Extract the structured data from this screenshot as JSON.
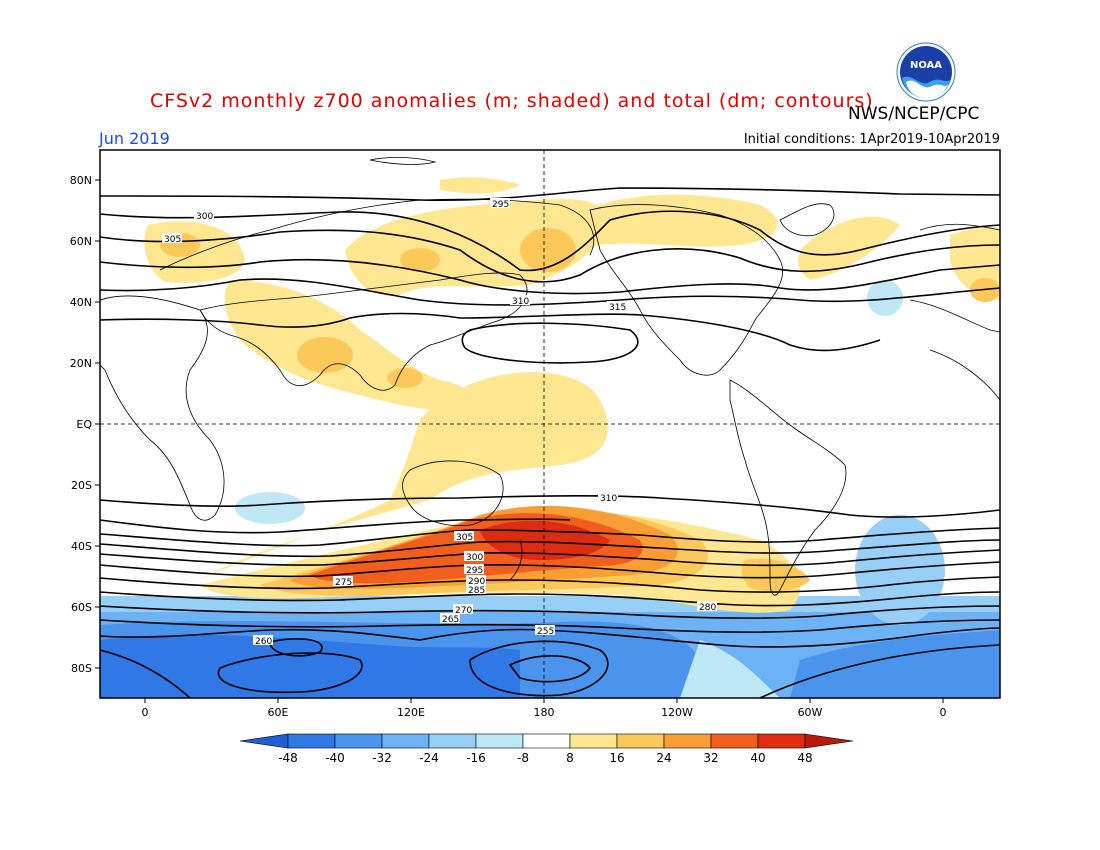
{
  "header": {
    "title": "CFSv2 monthly z700 anomalies (m; shaded) and total (dm; contours)",
    "agency": "NWS/NCEP/CPC",
    "period": "Jun 2019",
    "initial_conditions": "Initial conditions: 1Apr2019-10Apr2019",
    "logo_text": "NOAA"
  },
  "map": {
    "lat_ticks": [
      "80N",
      "60N",
      "40N",
      "20N",
      "EQ",
      "20S",
      "40S",
      "60S",
      "80S"
    ],
    "lon_ticks": [
      "0",
      "60E",
      "120E",
      "180",
      "120W",
      "60W",
      "0"
    ],
    "contour_labels": [
      "295",
      "300",
      "305",
      "310",
      "315",
      "310",
      "305",
      "300",
      "295",
      "290",
      "285",
      "280",
      "275",
      "270",
      "265",
      "260",
      "255"
    ]
  },
  "colorbar": {
    "ticks": [
      "-48",
      "-40",
      "-32",
      "-24",
      "-16",
      "-8",
      "8",
      "16",
      "24",
      "32",
      "40",
      "48"
    ],
    "colors": [
      "#1e5fd6",
      "#2f78e6",
      "#4a94ee",
      "#6cb2f4",
      "#98cff6",
      "#bfe8f6",
      "#ffffff",
      "#ffe690",
      "#fcc85a",
      "#f99d34",
      "#f25e1e",
      "#dd2c12",
      "#b81a0a"
    ]
  },
  "chart_data": {
    "type": "heatmap",
    "title": "CFSv2 monthly z700 anomalies (m; shaded) and total (dm; contours)",
    "period": "Jun 2019",
    "variable": "700 hPa geopotential height",
    "anomaly_units": "m",
    "total_units": "dm",
    "anomaly_levels": [
      -48,
      -40,
      -32,
      -24,
      -16,
      -8,
      8,
      16,
      24,
      32,
      40,
      48
    ],
    "contour_levels_dm": [
      255,
      260,
      265,
      270,
      275,
      280,
      285,
      290,
      295,
      300,
      305,
      310,
      315
    ],
    "lat_range": [
      -90,
      90
    ],
    "lon_range": [
      -20,
      20
    ]
  }
}
